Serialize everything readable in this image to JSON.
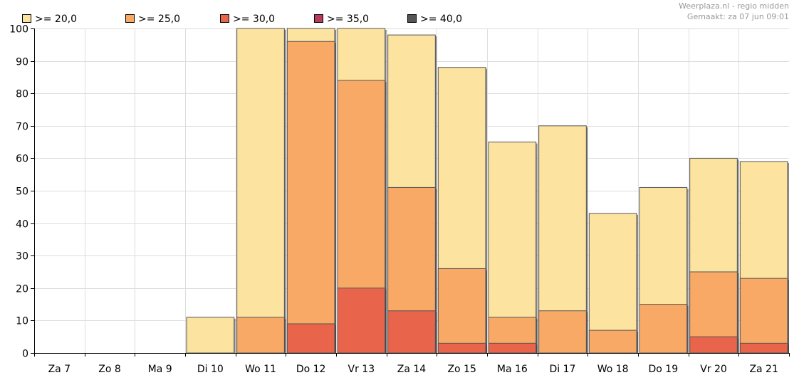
{
  "credit": {
    "source": "Weerplaza.nl - regio midden",
    "created": "Gemaakt: za 07 jun 09:01"
  },
  "colors": {
    "ge20": "#fde3a0",
    "ge25": "#f9a966",
    "ge30": "#e8644a",
    "ge35": "#b83a5e",
    "ge40": "#555555",
    "grid": "#dddddd",
    "bar_edge": "#555555"
  },
  "chart_data": {
    "type": "bar",
    "stacked": "overlay",
    "categories": [
      "Za 7",
      "Zo 8",
      "Ma 9",
      "Di 10",
      "Wo 11",
      "Do 12",
      "Vr 13",
      "Za 14",
      "Zo 15",
      "Ma 16",
      "Di 17",
      "Wo 18",
      "Do 19",
      "Vr 20",
      "Za 21"
    ],
    "series": [
      {
        "name": ">= 20,0",
        "color_key": "ge20",
        "values": [
          0,
          0,
          0,
          11,
          100,
          100,
          100,
          98,
          88,
          65,
          70,
          43,
          51,
          60,
          59
        ]
      },
      {
        "name": ">= 25,0",
        "color_key": "ge25",
        "values": [
          0,
          0,
          0,
          0,
          11,
          96,
          84,
          51,
          26,
          11,
          13,
          7,
          15,
          25,
          23
        ]
      },
      {
        "name": ">= 30,0",
        "color_key": "ge30",
        "values": [
          0,
          0,
          0,
          0,
          0,
          9,
          20,
          13,
          3,
          3,
          0,
          0,
          0,
          5,
          3
        ]
      },
      {
        "name": ">= 35,0",
        "color_key": "ge35",
        "values": [
          0,
          0,
          0,
          0,
          0,
          0,
          0,
          0,
          0,
          0,
          0,
          0,
          0,
          0,
          0
        ]
      },
      {
        "name": ">= 40,0",
        "color_key": "ge40",
        "values": [
          0,
          0,
          0,
          0,
          0,
          0,
          0,
          0,
          0,
          0,
          0,
          0,
          0,
          0,
          0
        ]
      }
    ],
    "yticks": [
      0,
      10,
      20,
      30,
      40,
      50,
      60,
      70,
      80,
      90,
      100
    ],
    "ylim": [
      0,
      100
    ],
    "grid": true,
    "legend_position": "top-left",
    "title": "",
    "xlabel": "",
    "ylabel": ""
  }
}
